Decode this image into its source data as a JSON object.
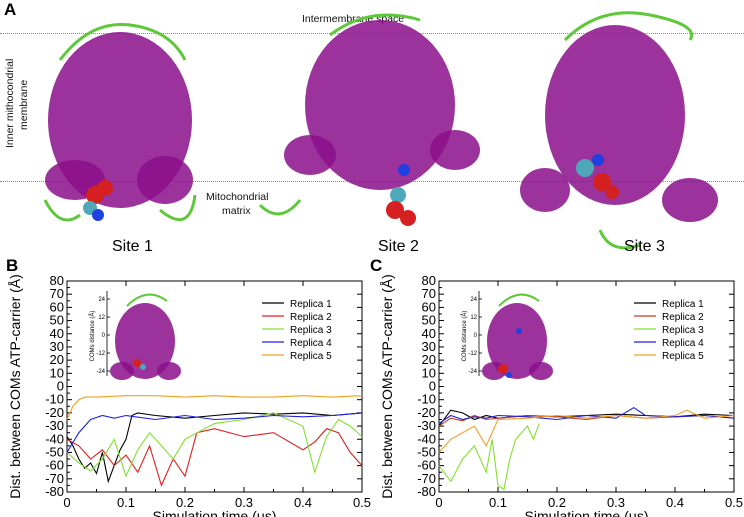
{
  "panels": {
    "A": "A",
    "B": "B",
    "C": "C"
  },
  "top": {
    "intermembrane": "Intermembrane space",
    "inner_membrane_line1": "Inner mithocondrial",
    "inner_membrane_line2": "membrane",
    "matrix_line1": "Mitochondrial",
    "matrix_line2": "matrix",
    "sites": [
      "Site 1",
      "Site 2",
      "Site 3"
    ]
  },
  "colors": {
    "protein": "#8B0F8B",
    "loop": "#5FC83A",
    "ligand_red": "#D42020",
    "ligand_cyan": "#4FA8B8",
    "ligand_blue": "#2040E0"
  },
  "chart_data": [
    {
      "type": "line",
      "panel": "B",
      "xlabel": "Simulation time (μs)",
      "ylabel": "Dist. between COMs ATP-carrier (Å)",
      "xlim": [
        0,
        0.5
      ],
      "ylim": [
        -80,
        80
      ],
      "xticks": [
        "0",
        "0.1",
        "0.2",
        "0.3",
        "0.4",
        "0.5"
      ],
      "yticks": [
        "80",
        "70",
        "60",
        "50",
        "40",
        "30",
        "20",
        "10",
        "0",
        "-10",
        "-20",
        "-30",
        "-40",
        "-50",
        "-60",
        "-70",
        "-80"
      ],
      "legend_position": "top-right",
      "inset": {
        "ylabel": "COMs distance (Å)",
        "yticks": [
          "24",
          "12",
          "0",
          "-12",
          "-24"
        ]
      },
      "series": [
        {
          "name": "Replica 1",
          "color": "#000000",
          "x": [
            0,
            0.01,
            0.02,
            0.03,
            0.04,
            0.05,
            0.06,
            0.07,
            0.08,
            0.09,
            0.1,
            0.11,
            0.12,
            0.15,
            0.2,
            0.25,
            0.3,
            0.35,
            0.4,
            0.45,
            0.5
          ],
          "y": [
            -38,
            -45,
            -55,
            -62,
            -58,
            -66,
            -50,
            -72,
            -60,
            -48,
            -40,
            -22,
            -20,
            -22,
            -24,
            -22,
            -20,
            -21,
            -20,
            -22,
            -20
          ]
        },
        {
          "name": "Replica 2",
          "color": "#E02020",
          "x": [
            0,
            0.02,
            0.04,
            0.06,
            0.08,
            0.1,
            0.12,
            0.14,
            0.16,
            0.18,
            0.2,
            0.22,
            0.25,
            0.3,
            0.35,
            0.4,
            0.42,
            0.44,
            0.46,
            0.48,
            0.5
          ],
          "y": [
            -40,
            -45,
            -55,
            -48,
            -60,
            -52,
            -65,
            -45,
            -75,
            -55,
            -68,
            -35,
            -32,
            -38,
            -35,
            -48,
            -42,
            -32,
            -35,
            -50,
            -60
          ]
        },
        {
          "name": "Replica 3",
          "color": "#80E030",
          "x": [
            0,
            0.02,
            0.04,
            0.06,
            0.08,
            0.1,
            0.12,
            0.14,
            0.16,
            0.18,
            0.2,
            0.25,
            0.3,
            0.35,
            0.4,
            0.42,
            0.44,
            0.46,
            0.48,
            0.5
          ],
          "y": [
            -50,
            -58,
            -64,
            -55,
            -40,
            -68,
            -48,
            -35,
            -45,
            -55,
            -40,
            -28,
            -25,
            -20,
            -30,
            -65,
            -38,
            -25,
            -30,
            -38
          ]
        },
        {
          "name": "Replica 4",
          "color": "#2020E0",
          "x": [
            0,
            0.02,
            0.04,
            0.06,
            0.08,
            0.1,
            0.15,
            0.2,
            0.25,
            0.3,
            0.35,
            0.4,
            0.45,
            0.5
          ],
          "y": [
            -50,
            -35,
            -25,
            -22,
            -24,
            -22,
            -25,
            -22,
            -25,
            -24,
            -22,
            -23,
            -22,
            -20
          ]
        },
        {
          "name": "Replica 5",
          "color": "#F0A020",
          "x": [
            0,
            0.01,
            0.02,
            0.03,
            0.05,
            0.1,
            0.15,
            0.2,
            0.25,
            0.3,
            0.35,
            0.4,
            0.45,
            0.5
          ],
          "y": [
            -25,
            -15,
            -10,
            -8,
            -8,
            -7,
            -7,
            -8,
            -7,
            -8,
            -8,
            -7,
            -8,
            -7
          ]
        }
      ]
    },
    {
      "type": "line",
      "panel": "C",
      "xlabel": "Simulation time (μs)",
      "ylabel": "Dist. between COMs ATP-carrier (Å)",
      "xlim": [
        0,
        0.5
      ],
      "ylim": [
        -80,
        80
      ],
      "xticks": [
        "0",
        "0.1",
        "0.2",
        "0.3",
        "0.4",
        "0.5"
      ],
      "yticks": [
        "80",
        "70",
        "60",
        "50",
        "40",
        "30",
        "20",
        "10",
        "0",
        "-10",
        "-20",
        "-30",
        "-40",
        "-50",
        "-60",
        "-70",
        "-80"
      ],
      "legend_position": "top-right",
      "inset": {
        "ylabel": "COMs distance (Å)",
        "yticks": [
          "24",
          "12",
          "0",
          "-12",
          "-24"
        ]
      },
      "series": [
        {
          "name": "Replica 1",
          "color": "#000000",
          "x": [
            0,
            0.02,
            0.04,
            0.06,
            0.08,
            0.1,
            0.15,
            0.2,
            0.25,
            0.3,
            0.35,
            0.4,
            0.45,
            0.5
          ],
          "y": [
            -30,
            -18,
            -20,
            -25,
            -22,
            -24,
            -22,
            -23,
            -22,
            -21,
            -22,
            -23,
            -21,
            -22
          ]
        },
        {
          "name": "Replica 2",
          "color": "#C04020",
          "x": [
            0,
            0.02,
            0.04,
            0.06,
            0.08,
            0.1,
            0.15,
            0.2,
            0.25,
            0.3,
            0.35,
            0.4,
            0.45,
            0.5
          ],
          "y": [
            -30,
            -24,
            -26,
            -22,
            -25,
            -24,
            -22,
            -23,
            -25,
            -22,
            -24,
            -23,
            -22,
            -24
          ]
        },
        {
          "name": "Replica 3",
          "color": "#80E030",
          "x": [
            0,
            0.02,
            0.04,
            0.06,
            0.08,
            0.09,
            0.1,
            0.11,
            0.12,
            0.13,
            0.14,
            0.15,
            0.16,
            0.17
          ],
          "y": [
            -60,
            -72,
            -55,
            -45,
            -65,
            -40,
            -75,
            -78,
            -55,
            -40,
            -35,
            -30,
            -40,
            -28
          ]
        },
        {
          "name": "Replica 4",
          "color": "#2020E0",
          "x": [
            0,
            0.02,
            0.04,
            0.06,
            0.08,
            0.1,
            0.15,
            0.2,
            0.25,
            0.3,
            0.33,
            0.35,
            0.4,
            0.45,
            0.5
          ],
          "y": [
            -28,
            -22,
            -25,
            -23,
            -24,
            -22,
            -23,
            -25,
            -22,
            -24,
            -16,
            -22,
            -23,
            -22,
            -24
          ]
        },
        {
          "name": "Replica 5",
          "color": "#F0A020",
          "x": [
            0,
            0.02,
            0.04,
            0.06,
            0.08,
            0.1,
            0.15,
            0.2,
            0.25,
            0.3,
            0.35,
            0.4,
            0.42,
            0.45,
            0.5
          ],
          "y": [
            -50,
            -40,
            -35,
            -30,
            -45,
            -25,
            -24,
            -22,
            -24,
            -22,
            -24,
            -22,
            -18,
            -24,
            -22
          ]
        }
      ]
    }
  ]
}
